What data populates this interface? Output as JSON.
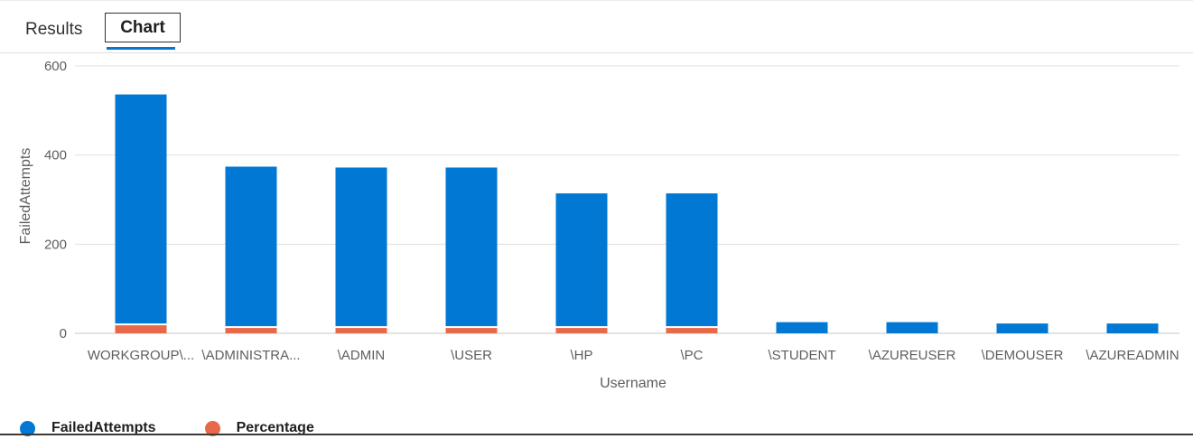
{
  "tabs": [
    {
      "label": "Results"
    },
    {
      "label": "Chart"
    }
  ],
  "colors": {
    "failed": "#0078d4",
    "percentage": "#e8684a",
    "grid": "#e1dfdd",
    "accent": "#0078d4"
  },
  "chart_data": {
    "type": "bar",
    "stacked": true,
    "categories": [
      "WORKGROUP\\...",
      "\\ADMINISTRA...",
      "\\ADMIN",
      "\\USER",
      "\\HP",
      "\\PC",
      "\\STUDENT",
      "\\AZUREUSER",
      "\\DEMOUSER",
      "\\AZUREADMIN"
    ],
    "series": [
      {
        "name": "FailedAttempts",
        "values": [
          518,
          362,
          360,
          360,
          302,
          302,
          25,
          25,
          22,
          22
        ]
      },
      {
        "name": "Percentage",
        "values": [
          18,
          12,
          12,
          12,
          12,
          12,
          0,
          0,
          0,
          0
        ]
      }
    ],
    "xlabel": "Username",
    "ylabel": "FailedAttempts",
    "yticks": [
      "0",
      "200",
      "400",
      "600"
    ],
    "ylim": [
      0,
      600
    ],
    "grid": true,
    "legend_position": "bottom-left"
  }
}
